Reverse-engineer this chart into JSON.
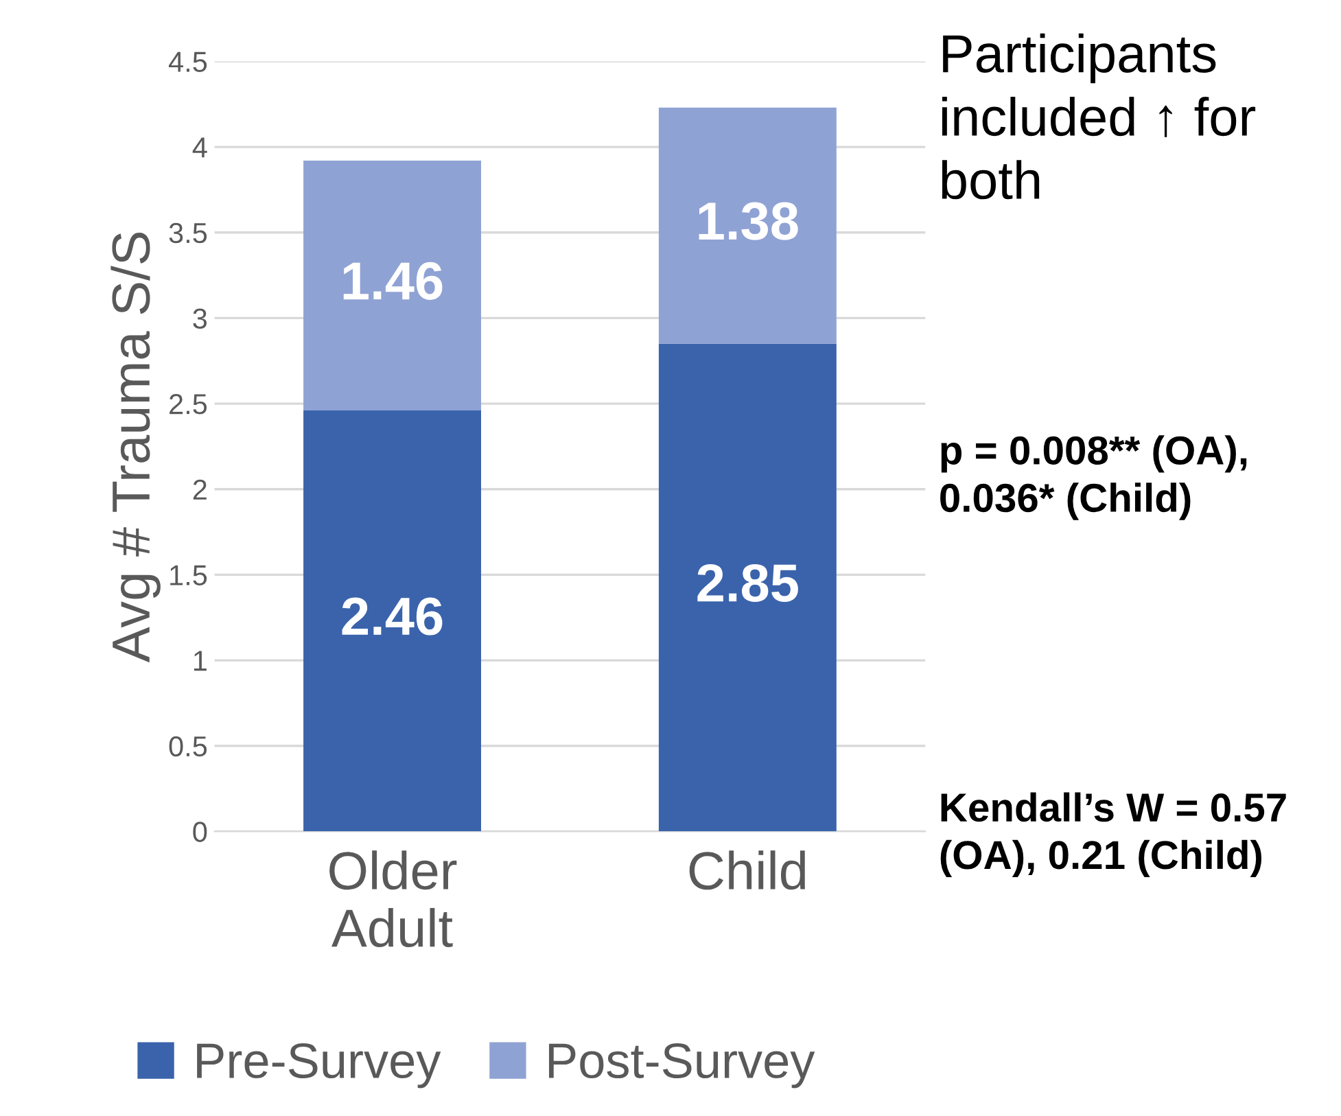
{
  "chart_data": {
    "type": "bar",
    "stacked": true,
    "categories": [
      "Older Adult",
      "Child"
    ],
    "ylabel": "Avg # Trauma S/S",
    "series": [
      {
        "name": "Pre-Survey",
        "color": "#3a63ac",
        "values": [
          2.46,
          2.85
        ]
      },
      {
        "name": "Post-Survey",
        "color": "#8fa2d4",
        "values": [
          1.46,
          1.38
        ]
      }
    ],
    "ylim": [
      0,
      4.5
    ],
    "yticks": [
      0,
      0.5,
      1,
      1.5,
      2,
      2.5,
      3,
      3.5,
      4,
      4.5
    ],
    "grid": "y",
    "legend": "bottom",
    "data_labels": true,
    "annotations": [
      "Participants included ↑ for both",
      "p = 0.008** (OA), 0.036* (Child)",
      "Kendall’s W = 0.57 (OA), 0.21 (Child)"
    ]
  }
}
